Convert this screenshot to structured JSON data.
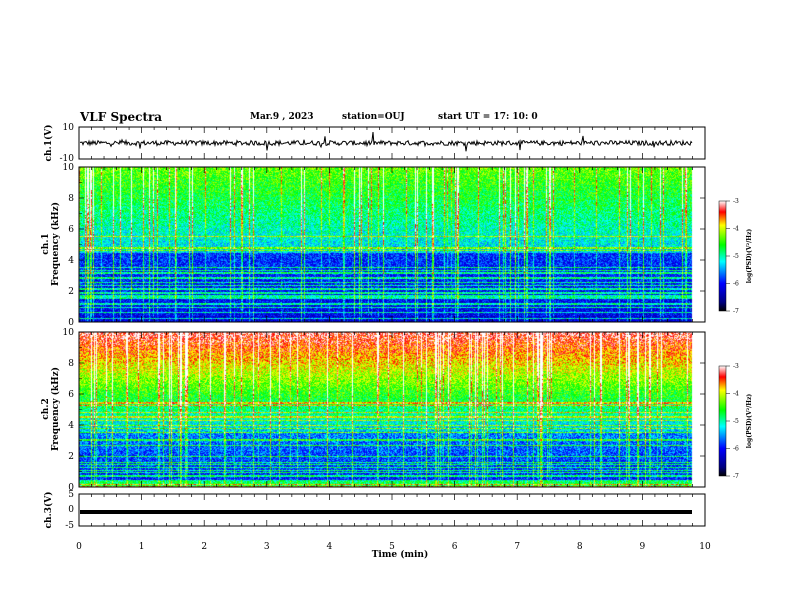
{
  "header": {
    "title": "VLF Spectra",
    "date": "Mar.9 , 2023",
    "station": "station=OUJ",
    "start": "start UT = 17: 10: 0"
  },
  "chart_data": [
    {
      "type": "line",
      "ylabel": "ch.1(V)",
      "ylim": [
        -10,
        10
      ],
      "yticks": [
        "10",
        "-10"
      ],
      "xlim": [
        0,
        10
      ],
      "series": [
        {
          "baseline": 0,
          "noise_amplitude": 1.5
        }
      ]
    },
    {
      "type": "heatmap",
      "ylabel": "ch.1\nFrequency (kHz)",
      "ylim": [
        0,
        10
      ],
      "yticks": [
        "0",
        "2",
        "4",
        "6",
        "8",
        "10"
      ],
      "xlim": [
        0,
        10
      ],
      "colorbar": {
        "label": "log(PSD)(V²/Hz)",
        "range": [
          -7,
          -3
        ],
        "ticks": [
          "-3",
          "-4",
          "-5",
          "-6",
          "-7"
        ]
      }
    },
    {
      "type": "heatmap",
      "ylabel": "ch.2\nFrequency (kHz)",
      "ylim": [
        0,
        10
      ],
      "yticks": [
        "0",
        "2",
        "4",
        "6",
        "8",
        "10"
      ],
      "xlim": [
        0,
        10
      ],
      "colorbar": {
        "label": "log(PSD)(V²/Hz)",
        "range": [
          -7,
          -3
        ],
        "ticks": [
          "-3",
          "-4",
          "-5",
          "-6",
          "-7"
        ]
      }
    },
    {
      "type": "line",
      "ylabel": "ch.3(V)",
      "ylim": [
        -5,
        5
      ],
      "yticks": [
        "5",
        "0",
        "-5"
      ],
      "xlim": [
        0,
        10
      ],
      "xlabel": "Time (min)",
      "xticks": [
        "0",
        "1",
        "2",
        "3",
        "4",
        "5",
        "6",
        "7",
        "8",
        "9",
        "10"
      ],
      "series": [
        {
          "baseline": -0.5
        }
      ]
    }
  ]
}
